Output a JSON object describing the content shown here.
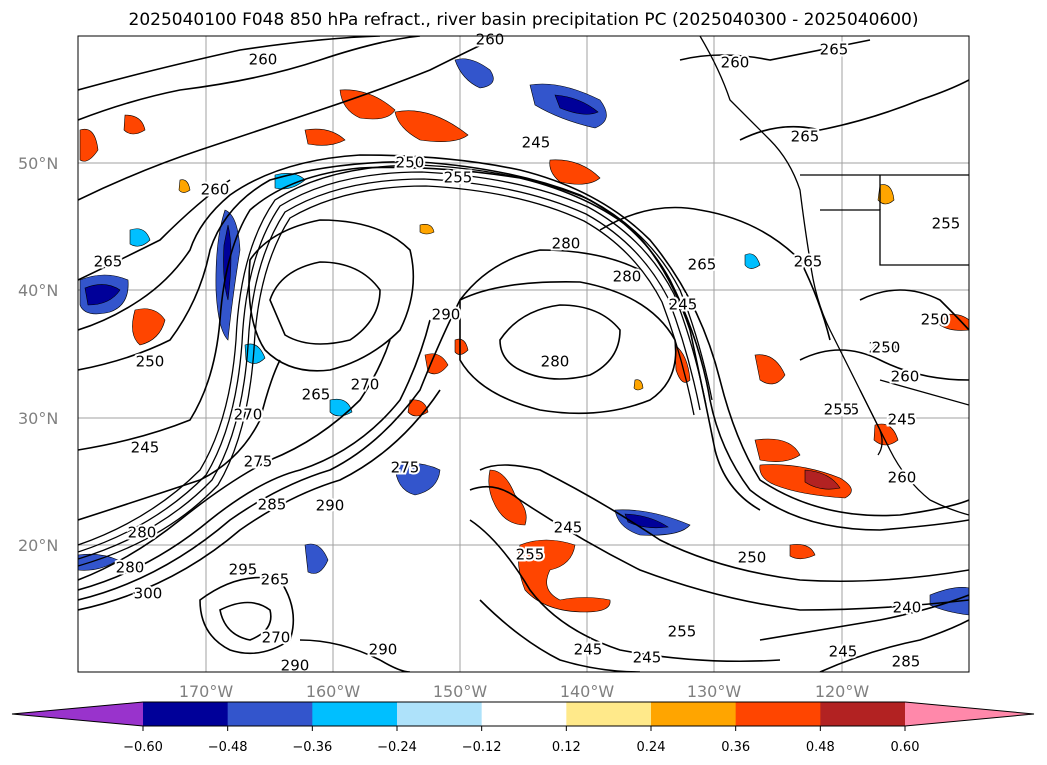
{
  "title": "2025040100 F048 850 hPa refract., river basin precipitation PC (2025040300 - 2025040600)",
  "lat_ticks": [
    "50°N",
    "40°N",
    "30°N",
    "20°N"
  ],
  "lon_ticks": [
    "170°W",
    "160°W",
    "150°W",
    "140°W",
    "130°W",
    "120°W"
  ],
  "contour_labels": [
    "260",
    "260",
    "265",
    "260",
    "265",
    "245",
    "250",
    "255",
    "260",
    "280",
    "280",
    "265",
    "245",
    "265",
    "265",
    "250",
    "280",
    "290",
    "250",
    "255",
    "270",
    "265",
    "270",
    "245",
    "275",
    "285",
    "275",
    "290",
    "295",
    "280",
    "280",
    "265",
    "300",
    "270",
    "290",
    "290",
    "250",
    "245",
    "255",
    "245",
    "240",
    "245",
    "255",
    "245",
    "260",
    "250",
    "255",
    "245",
    "260",
    "255",
    "250",
    "285"
  ],
  "colorbar": {
    "ticks": [
      "−0.60",
      "−0.48",
      "−0.36",
      "−0.24",
      "−0.12",
      "0.12",
      "0.24",
      "0.36",
      "0.48",
      "0.60"
    ],
    "colors": [
      "#9933cc",
      "#000099",
      "#3355cc",
      "#00bfff",
      "#aee2fa",
      "#ffffff",
      "#ffe98a",
      "#ffa500",
      "#ff4500",
      "#b22222",
      "#ff88aa"
    ]
  },
  "colors": {
    "contour": "#000000",
    "grid": "#a0a0a0",
    "neg_strong": "#000099",
    "neg_mid": "#3355cc",
    "neg_light": "#00bfff",
    "pos_light": "#ffe98a",
    "pos_mid": "#ffa500",
    "pos_strong": "#ff4500",
    "pos_dark": "#b22222"
  }
}
